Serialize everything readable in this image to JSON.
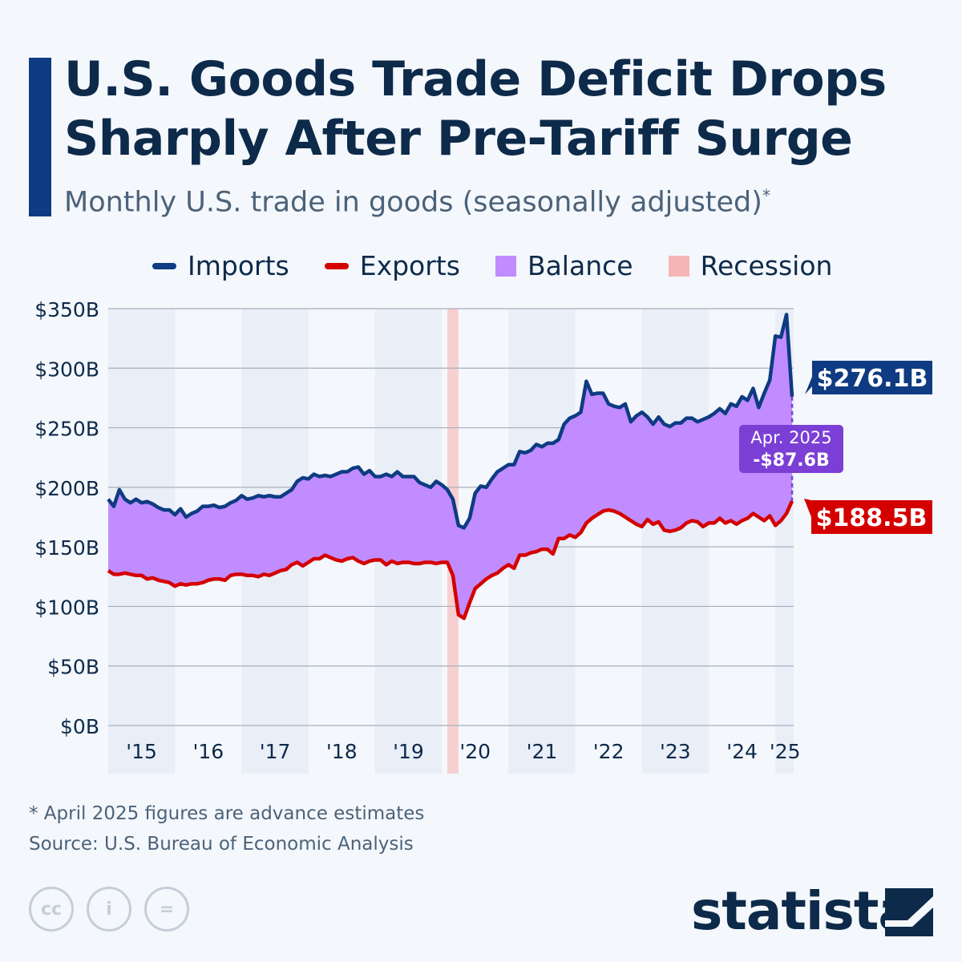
{
  "title": "U.S. Goods Trade Deficit Drops Sharply After Pre-Tariff Surge",
  "subtitle": "Monthly U.S. trade in goods (seasonally adjusted)",
  "subtitle_mark": "*",
  "footnote": "* April 2025 figures are advance estimates",
  "source": "Source: U.S. Bureau of Economic Analysis",
  "brand": "statista",
  "colors": {
    "imports": "#0e3b82",
    "exports": "#d40000",
    "balance": "#c08cff",
    "recession": "#f6b5b5",
    "callout": "#7b3fd6"
  },
  "chart_data": {
    "type": "area",
    "legend": [
      "Imports",
      "Exports",
      "Balance",
      "Recession"
    ],
    "legend_placement": "top",
    "grid": true,
    "ylim": [
      0,
      350
    ],
    "yticks": [
      "$0B",
      "$50B",
      "$100B",
      "$150B",
      "$200B",
      "$250B",
      "$300B",
      "$350B"
    ],
    "ytick_values": [
      0,
      50,
      100,
      150,
      200,
      250,
      300,
      350
    ],
    "xticks": [
      "'15",
      "'16",
      "'17",
      "'18",
      "'19",
      "'20",
      "'21",
      "'22",
      "'23",
      "'24",
      "'25"
    ],
    "x_start": "2015-01",
    "x_end": "2025-04",
    "recession": [
      "2020-02",
      "2020-04"
    ],
    "series": [
      {
        "name": "Imports",
        "values": [
          190,
          184,
          198,
          190,
          187,
          190,
          187,
          188,
          186,
          183,
          181,
          181,
          177,
          182,
          175,
          178,
          180,
          184,
          184,
          185,
          183,
          184,
          187,
          189,
          193,
          190,
          191,
          193,
          192,
          193,
          192,
          192,
          195,
          198,
          205,
          208,
          207,
          211,
          209,
          210,
          209,
          211,
          213,
          213,
          216,
          217,
          211,
          214,
          209,
          209,
          211,
          209,
          213,
          209,
          209,
          209,
          204,
          202,
          200,
          205,
          202,
          198,
          190,
          168,
          166,
          174,
          195,
          201,
          200,
          207,
          213,
          216,
          219,
          219,
          230,
          229,
          231,
          236,
          234,
          237,
          237,
          240,
          253,
          258,
          260,
          263,
          289,
          278,
          279,
          279,
          270,
          268,
          267,
          270,
          255,
          260,
          263,
          259,
          253,
          259,
          253,
          251,
          254,
          254,
          258,
          258,
          255,
          257,
          259,
          262,
          266,
          262,
          270,
          268,
          276,
          273,
          283,
          267,
          279,
          290,
          327,
          326,
          345,
          276.1
        ]
      },
      {
        "name": "Exports",
        "values": [
          130,
          127,
          127,
          128,
          127,
          126,
          126,
          123,
          124,
          122,
          121,
          120,
          117,
          119,
          118,
          119,
          119,
          120,
          122,
          123,
          123,
          122,
          126,
          127,
          127,
          126,
          126,
          125,
          127,
          126,
          128,
          130,
          131,
          135,
          137,
          134,
          137,
          140,
          140,
          143,
          141,
          139,
          138,
          140,
          141,
          138,
          136,
          138,
          139,
          139,
          135,
          138,
          136,
          137,
          137,
          136,
          136,
          137,
          137,
          136,
          137,
          137,
          126,
          93,
          90,
          103,
          115,
          119,
          123,
          126,
          128,
          132,
          135,
          132,
          143,
          143,
          145,
          146,
          148,
          148,
          144,
          157,
          157,
          160,
          158,
          162,
          170,
          174,
          177,
          180,
          181,
          180,
          178,
          175,
          172,
          169,
          167,
          173,
          169,
          171,
          164,
          163,
          164,
          166,
          170,
          172,
          171,
          167,
          170,
          170,
          174,
          170,
          172,
          169,
          172,
          174,
          178,
          175,
          172,
          176,
          168,
          172,
          178,
          188.5
        ]
      }
    ],
    "annotations": {
      "imports_last": "$276.1B",
      "exports_last": "$188.5B",
      "balance_label": "Apr. 2025",
      "balance_value": "-$87.6B"
    }
  }
}
